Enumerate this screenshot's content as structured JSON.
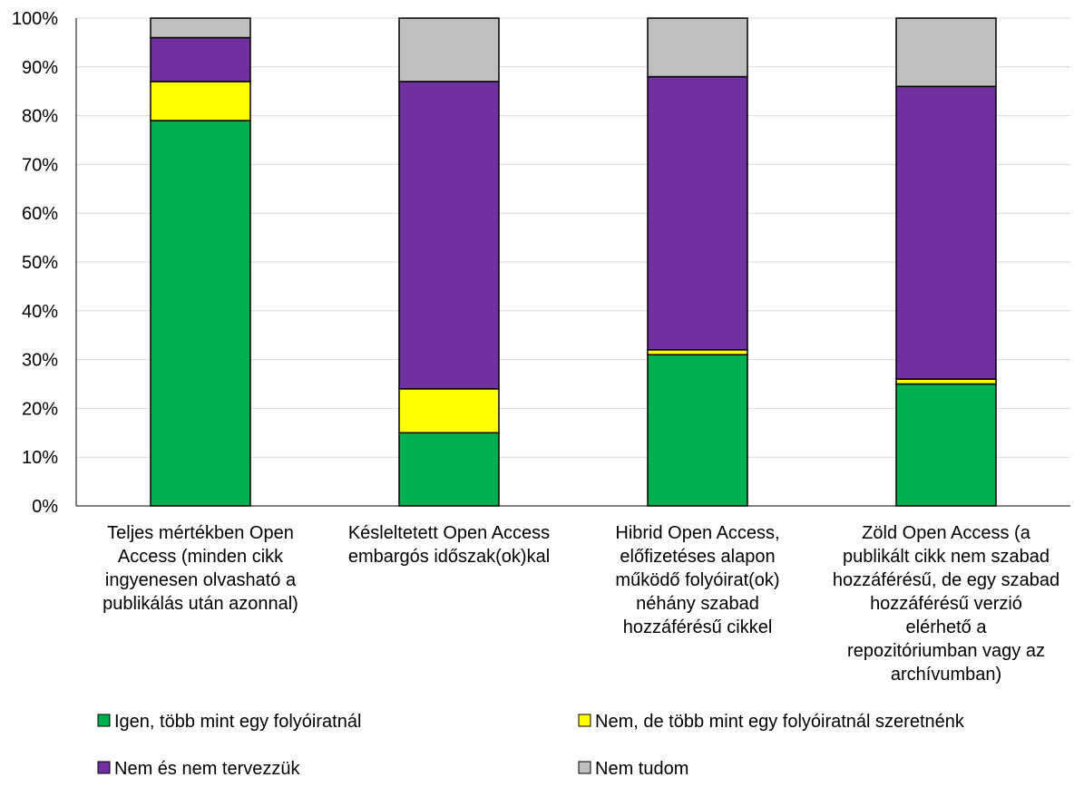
{
  "chart_data": {
    "type": "bar",
    "stacked": true,
    "percent_stacked": true,
    "title": "",
    "xlabel": "",
    "ylabel": "",
    "ylim": [
      0,
      100
    ],
    "y_ticks": [
      "0%",
      "10%",
      "20%",
      "30%",
      "40%",
      "50%",
      "60%",
      "70%",
      "80%",
      "90%",
      "100%"
    ],
    "grid": true,
    "legend_position": "bottom",
    "categories": [
      [
        "Teljes mértékben Open",
        "Access (minden cikk",
        "ingyenesen olvasható a",
        "publikálás után azonnal)"
      ],
      [
        "Késleltetett Open Access",
        "embargós időszak(ok)kal"
      ],
      [
        "Hibrid Open Access,",
        "előfizetéses alapon",
        "működő folyóirat(ok)",
        "néhány szabad",
        "hozzáférésű cikkel"
      ],
      [
        "Zöld Open Access (a",
        "publikált cikk nem szabad",
        "hozzáférésű, de egy szabad",
        "hozzáférésű verzió",
        "elérhető a",
        "repozitóriumban vagy az",
        "archívumban)"
      ]
    ],
    "series": [
      {
        "name": "Igen, több mint egy folyóiratnál",
        "color": "#00B050",
        "values": [
          79,
          15,
          31,
          25
        ]
      },
      {
        "name": "Nem, de több mint egy folyóiratnál szeretnénk",
        "color": "#FFFF00",
        "values": [
          8,
          9,
          1,
          1
        ]
      },
      {
        "name": "Nem és nem tervezzük",
        "color": "#7030A0",
        "values": [
          9,
          63,
          56,
          60
        ]
      },
      {
        "name": "Nem tudom",
        "color": "#BFBFBF",
        "values": [
          4,
          13,
          12,
          14
        ]
      }
    ]
  }
}
